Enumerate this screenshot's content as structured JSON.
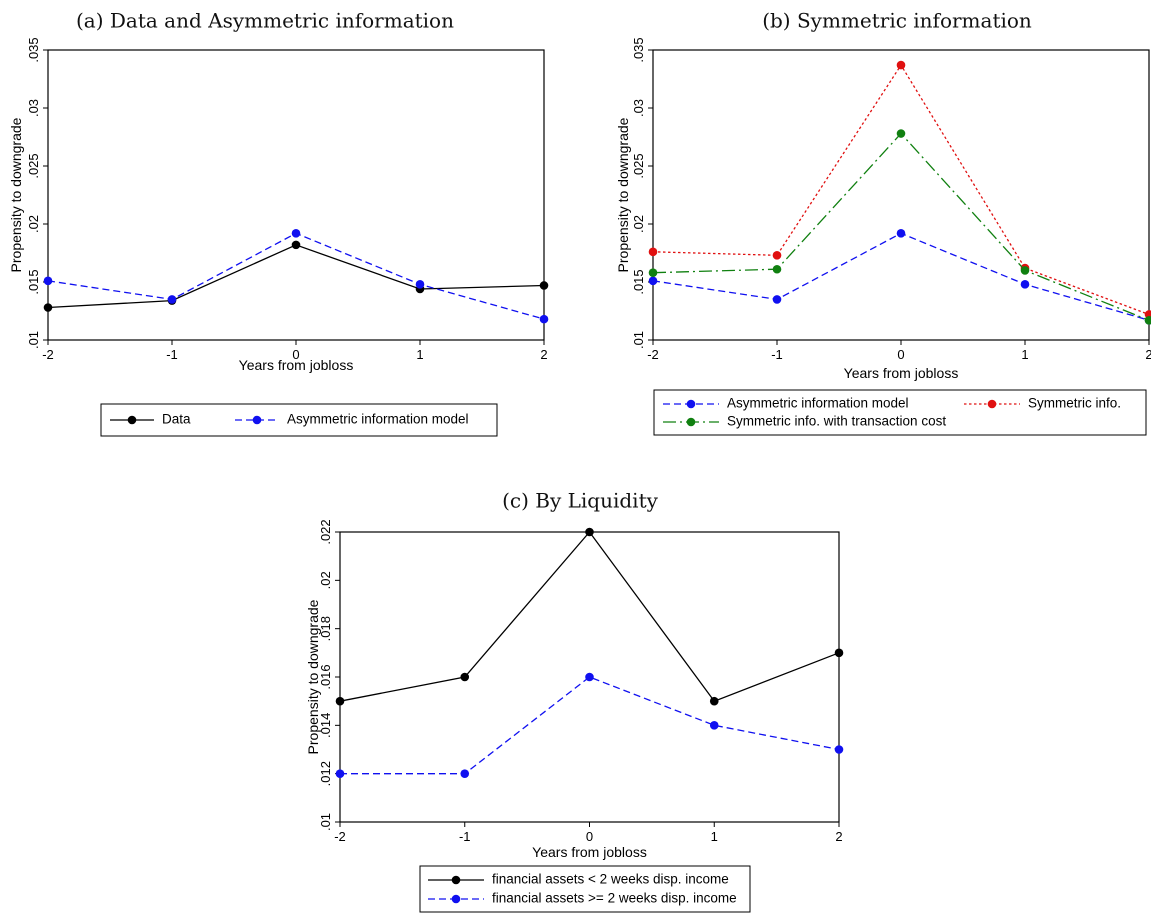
{
  "chart_data": [
    {
      "type": "line",
      "title": "(a) Data and Asymmetric information",
      "xlabel": "Years from jobloss",
      "ylabel": "Propensity to downgrade",
      "x": [
        -2,
        -1,
        0,
        1,
        2
      ],
      "x_tick_labels": [
        "-2",
        "-1",
        "0",
        "1",
        "2"
      ],
      "xlim": [
        -2,
        2
      ],
      "ylim": [
        0.01,
        0.035
      ],
      "y_ticks": [
        0.01,
        0.015,
        0.02,
        0.025,
        0.03,
        0.035
      ],
      "y_tick_labels": [
        ".01",
        ".015",
        ".02",
        ".025",
        ".03",
        ".035"
      ],
      "grid": false,
      "legend_placement": "bottom",
      "series": [
        {
          "name": "Data",
          "values": [
            0.0128,
            0.0134,
            0.0182,
            0.0144,
            0.0147
          ],
          "color": "#000000",
          "dash": "solid"
        },
        {
          "name": "Asymmetric information model",
          "values": [
            0.0151,
            0.0135,
            0.0192,
            0.0148,
            0.0118
          ],
          "color": "#1010f0",
          "dash": "dashed"
        }
      ]
    },
    {
      "type": "line",
      "title": "(b) Symmetric information",
      "xlabel": "Years from jobloss",
      "ylabel": "Propensity to downgrade",
      "x": [
        -2,
        -1,
        0,
        1,
        2
      ],
      "x_tick_labels": [
        "-2",
        "-1",
        "0",
        "1",
        "2"
      ],
      "xlim": [
        -2,
        2
      ],
      "ylim": [
        0.01,
        0.035
      ],
      "y_ticks": [
        0.01,
        0.015,
        0.02,
        0.025,
        0.03,
        0.035
      ],
      "y_tick_labels": [
        ".01",
        ".015",
        ".02",
        ".025",
        ".03",
        ".035"
      ],
      "grid": false,
      "legend_placement": "bottom",
      "series": [
        {
          "name": "Asymmetric information model",
          "values": [
            0.0151,
            0.0135,
            0.0192,
            0.0148,
            0.0117
          ],
          "color": "#1010f0",
          "dash": "dashed"
        },
        {
          "name": "Symmetric info.",
          "values": [
            0.0176,
            0.0173,
            0.0337,
            0.0162,
            0.0122
          ],
          "color": "#e01010",
          "dash": "dotted"
        },
        {
          "name": "Symmetric info. with transaction cost",
          "values": [
            0.0158,
            0.0161,
            0.0278,
            0.016,
            0.0117
          ],
          "color": "#108010",
          "dash": "longdash"
        }
      ]
    },
    {
      "type": "line",
      "title": "(c) By Liquidity",
      "xlabel": "Years from jobloss",
      "ylabel": "Propensity to downgrade",
      "x": [
        -2,
        -1,
        0,
        1,
        2
      ],
      "x_tick_labels": [
        "-2",
        "-1",
        "0",
        "1",
        "2"
      ],
      "xlim": [
        -2,
        2
      ],
      "ylim": [
        0.01,
        0.022
      ],
      "y_ticks": [
        0.01,
        0.012,
        0.014,
        0.016,
        0.018,
        0.02,
        0.022
      ],
      "y_tick_labels": [
        ".01",
        ".012",
        ".014",
        ".016",
        ".018",
        ".02",
        ".022"
      ],
      "grid": false,
      "legend_placement": "bottom",
      "series": [
        {
          "name": "financial assets < 2 weeks disp. income",
          "values": [
            0.015,
            0.016,
            0.022,
            0.015,
            0.017
          ],
          "color": "#000000",
          "dash": "solid"
        },
        {
          "name": "financial assets >= 2 weeks disp. income",
          "values": [
            0.012,
            0.012,
            0.016,
            0.014,
            0.013
          ],
          "color": "#1010f0",
          "dash": "dashed"
        }
      ]
    }
  ]
}
